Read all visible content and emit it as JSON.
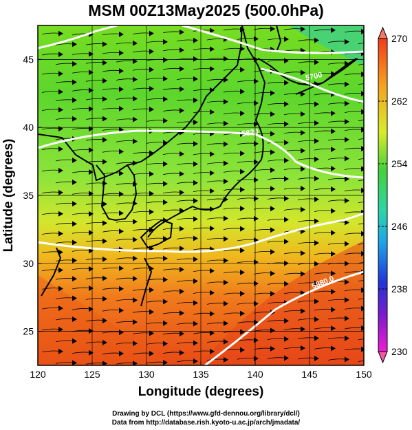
{
  "title": "MSM 00Z13May2025 (500.0hPa)",
  "xaxis": {
    "label": "Longitude (degrees)",
    "ticks": [
      "120",
      "125",
      "130",
      "135",
      "140",
      "145",
      "150"
    ]
  },
  "yaxis": {
    "label": "Latitude  (degrees)",
    "ticks": [
      "25",
      "30",
      "35",
      "40",
      "45"
    ]
  },
  "colorbar": {
    "min": 230,
    "max": 270,
    "ticks": [
      "270",
      "262",
      "254",
      "246",
      "238",
      "230"
    ]
  },
  "contour_labels": [
    "5700",
    "5820",
    "5880.0"
  ],
  "credits": {
    "line1": "Drawing by DCL (https://www.gfd-dennou.org/library/dcl/)",
    "line2": "Data from http://database.rish.kyoto-u.ac.jp/arch/jmadata/"
  },
  "map_data": {
    "projection": "lon-lat",
    "lon_range": [
      120,
      150
    ],
    "lat_range": [
      22.5,
      47.5
    ],
    "field": "temperature (K) shaded with streamlines",
    "gridlines": true,
    "temperature_bands": [
      {
        "lat": 47.5,
        "value": 257
      },
      {
        "lat": 42,
        "value": 256
      },
      {
        "lat": 36,
        "value": 255
      },
      {
        "lat": 33,
        "value": 258
      },
      {
        "lat": 30,
        "value": 262
      },
      {
        "lat": 27,
        "value": 265
      },
      {
        "lat": 22.5,
        "value": 267
      }
    ]
  },
  "colors": {
    "frame": "#000000",
    "contour": "#ffffff",
    "stream": "#000000"
  }
}
